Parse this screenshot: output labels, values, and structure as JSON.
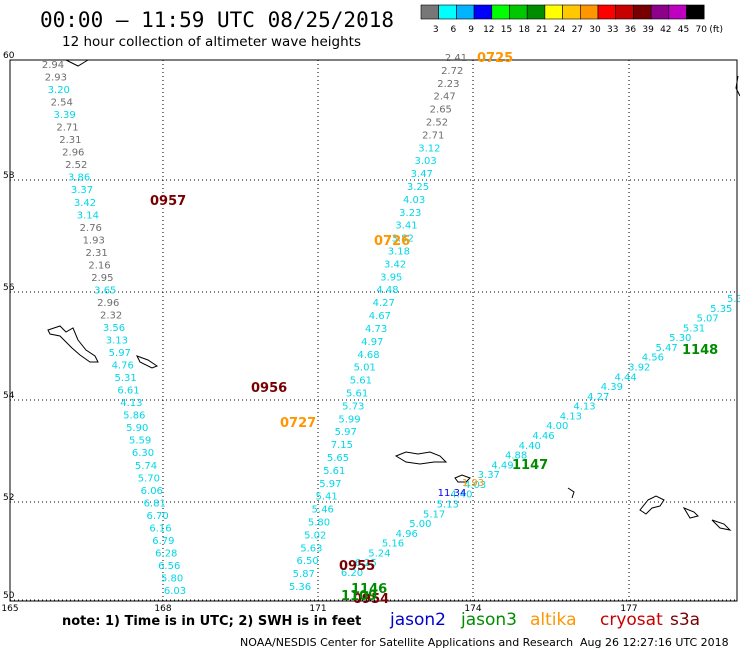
{
  "title": "00:00 – 11:59 UTC 08/25/2018",
  "subtitle": "12 hour collection of altimeter wave heights",
  "scale": {
    "labels": [
      "3",
      "6",
      "9",
      "12",
      "15",
      "18",
      "21",
      "24",
      "27",
      "30",
      "33",
      "36",
      "39",
      "42",
      "45",
      "70",
      "(ft)"
    ],
    "colors": [
      "#777777",
      "#00ffff",
      "#00b4ff",
      "#0000ff",
      "#00ff00",
      "#00c800",
      "#008c00",
      "#ffff00",
      "#ffc800",
      "#ff9600",
      "#ff0000",
      "#c80000",
      "#780000",
      "#8c008c",
      "#c000c0",
      "#000000"
    ]
  },
  "axes": {
    "lat_labels": [
      "60",
      "58",
      "56",
      "54",
      "52",
      "50"
    ],
    "lon_labels": [
      "165",
      "168",
      "171",
      "174",
      "177"
    ]
  },
  "satellite_colors": {
    "jason2": "#0000cc",
    "jason3": "#008c00",
    "altika": "#ff9600",
    "cryosat": "#c80000",
    "s3a": "#780000",
    "gray": "#6e6e6e",
    "cyan": "#00d8e8",
    "blue": "#0000ff"
  },
  "pass_labels": [
    {
      "text": "0725",
      "color": "#ff9600"
    },
    {
      "text": "0726",
      "color": "#ff9600"
    },
    {
      "text": "0727",
      "color": "#ff9600"
    },
    {
      "text": "0957",
      "color": "#780000"
    },
    {
      "text": "0956",
      "color": "#780000"
    },
    {
      "text": "0955",
      "color": "#780000"
    },
    {
      "text": "0954",
      "color": "#780000"
    },
    {
      "text": "1148",
      "color": "#008c00"
    },
    {
      "text": "1147",
      "color": "#008c00"
    },
    {
      "text": "1146",
      "color": "#008c00"
    },
    {
      "text": "1109",
      "color": "#008c00"
    }
  ],
  "tracks": {
    "ne_track": [
      "2.41",
      "2.72",
      "2.23",
      "2.47",
      "2.65",
      "2.52",
      "2.71",
      "3.12",
      "3.03",
      "3.47",
      "3.25",
      "4.03",
      "3.23",
      "3.41",
      "3.82",
      "3.18",
      "3.42",
      "3.95",
      "4.48",
      "4.27",
      "4.67",
      "4.73",
      "4.97",
      "4.68",
      "5.01",
      "5.61",
      "5.61",
      "5.73",
      "5.99",
      "5.97",
      "7.15",
      "5.65",
      "5.61",
      "5.97",
      "5.41",
      "5.46",
      "5.80",
      "5.02",
      "5.63",
      "6.50",
      "5.87",
      "5.36"
    ],
    "nw_track": [
      "2.94",
      "2.93",
      "3.20",
      "2.54",
      "3.39",
      "2.71",
      "2.31",
      "2.96",
      "2.52",
      "3.86",
      "3.37",
      "3.42",
      "3.14",
      "2.76",
      "1.93",
      "2.31",
      "2.16",
      "2.95",
      "3.65",
      "2.96",
      "2.32",
      "3.56",
      "3.13",
      "5.97",
      "4.76",
      "5.31",
      "6.61",
      "4.13",
      "5.86",
      "5.90",
      "5.59",
      "6.30",
      "5.74",
      "5.70",
      "6.06",
      "6.81",
      "6.70",
      "6.16",
      "6.79",
      "6.28",
      "6.56",
      "5.80",
      "6.03"
    ],
    "se_track": [
      "5.3",
      "5.35",
      "5.07",
      "5.31",
      "5.30",
      "5.47",
      "4.56",
      "3.92",
      "4.44",
      "4.39",
      "4.27",
      "4.13",
      "4.13",
      "4.00",
      "4.46",
      "4.40",
      "4.88",
      "4.49",
      "3.37",
      "4.03",
      "4.40",
      "5.13",
      "5.17",
      "5.00",
      "4.96",
      "5.16",
      "5.24",
      "6.25",
      "6.20"
    ],
    "jason2_value": "11.34",
    "altika_value": "1.93"
  },
  "note": "note: 1) Time is in UTC; 2) SWH is in feet",
  "legend": [
    {
      "text": "jason2",
      "color": "#0000cc"
    },
    {
      "text": "jason3",
      "color": "#008c00"
    },
    {
      "text": "altika",
      "color": "#ff9600"
    },
    {
      "text": "cryosat",
      "color": "#c80000"
    },
    {
      "text": "s3a",
      "color": "#780000"
    }
  ],
  "footer_credit": "NOAA/NESDIS Center for Satellite Applications and Research",
  "footer_timestamp": "Aug 26 12:27:16 UTC 2018"
}
